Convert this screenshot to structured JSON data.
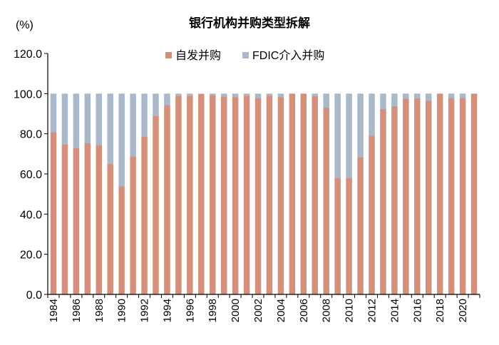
{
  "chart_data": {
    "type": "bar",
    "stacked": true,
    "title": "银行机构并购类型拆解",
    "ylabel": "(%)",
    "ylim": [
      0,
      120
    ],
    "yticks": [
      "0.0",
      "20.0",
      "40.0",
      "60.0",
      "80.0",
      "100.0",
      "120.0"
    ],
    "grid": false,
    "legend_position": "top",
    "categories": [
      "1984",
      "1985",
      "1986",
      "1987",
      "1988",
      "1989",
      "1990",
      "1991",
      "1992",
      "1993",
      "1994",
      "1995",
      "1996",
      "1997",
      "1998",
      "1999",
      "2000",
      "2001",
      "2002",
      "2003",
      "2004",
      "2005",
      "2006",
      "2007",
      "2008",
      "2009",
      "2010",
      "2011",
      "2012",
      "2013",
      "2014",
      "2015",
      "2016",
      "2017",
      "2018",
      "2019",
      "2020",
      "2021"
    ],
    "series": [
      {
        "name": "自发并购",
        "color": "#d4907a",
        "values": [
          80.8,
          74.7,
          73.0,
          75.4,
          74.4,
          65.0,
          53.8,
          68.8,
          78.6,
          89.0,
          94.4,
          99.0,
          99.0,
          99.8,
          99.3,
          98.5,
          98.3,
          99.0,
          97.8,
          99.0,
          98.3,
          100,
          100,
          98.8,
          93.0,
          58.0,
          58.0,
          68.4,
          79.0,
          92.3,
          93.8,
          97.5,
          97.7,
          96.5,
          100,
          97.8,
          97.8,
          100
        ]
      },
      {
        "name": "FDIC介入并购",
        "color": "#aab8cc",
        "values": [
          19.2,
          25.3,
          27.0,
          24.6,
          25.6,
          35.0,
          46.2,
          31.2,
          21.4,
          11.0,
          5.6,
          1.0,
          1.0,
          0.2,
          0.7,
          1.5,
          1.7,
          1.0,
          2.2,
          1.0,
          1.7,
          0,
          0,
          1.2,
          7.0,
          42.0,
          42.0,
          31.6,
          21.0,
          7.7,
          6.2,
          2.5,
          2.3,
          3.5,
          0,
          2.2,
          2.2,
          0
        ]
      }
    ]
  }
}
